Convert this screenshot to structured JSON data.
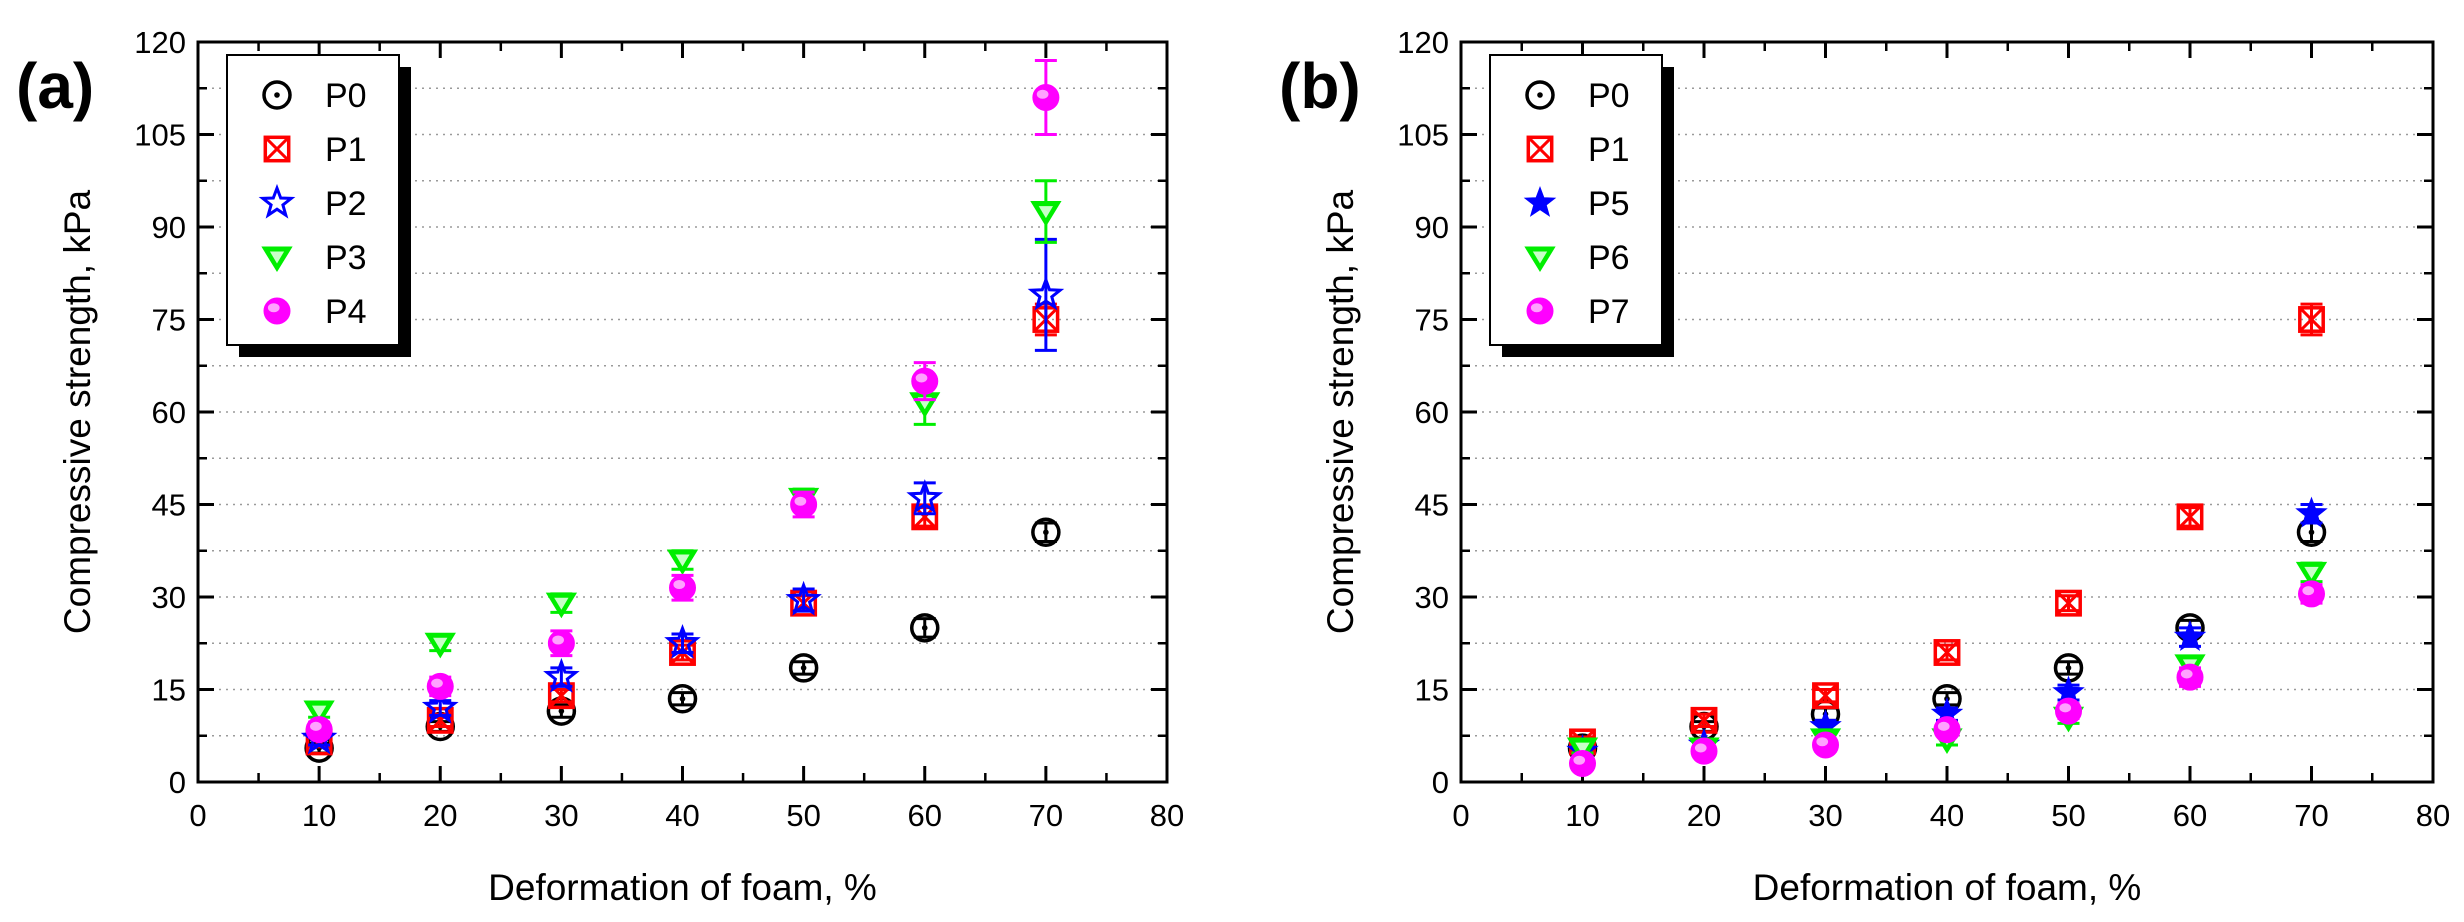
{
  "chart_data": [
    {
      "panel_label": "(a)",
      "type": "scatter",
      "xlabel": "Deformation of foam, %",
      "ylabel": "Compressive strength, kPa",
      "xlim": [
        0,
        80
      ],
      "ylim": [
        0,
        120
      ],
      "xticks": [
        "0",
        "10",
        "20",
        "30",
        "40",
        "50",
        "60",
        "70",
        "80"
      ],
      "yticks": [
        "0",
        "15",
        "30",
        "45",
        "60",
        "75",
        "90",
        "105",
        "120"
      ],
      "grid": "horizontal dotted",
      "legend_position": "top-left",
      "x": [
        10,
        20,
        30,
        40,
        50,
        60,
        70
      ],
      "series": [
        {
          "name": "P0",
          "marker": "circle-dot",
          "color": "#000000",
          "values": [
            5.5,
            9,
            11.5,
            13.5,
            18.5,
            25,
            40.5
          ],
          "errors": [
            0.8,
            0.8,
            1,
            1,
            1,
            1.5,
            1.5
          ]
        },
        {
          "name": "P1",
          "marker": "square-x",
          "color": "#ff0000",
          "values": [
            6.5,
            10,
            14,
            21,
            29,
            43,
            75
          ],
          "errors": [
            0.8,
            1,
            1,
            1.2,
            1.2,
            1.5,
            2.5
          ]
        },
        {
          "name": "P2",
          "marker": "star-open",
          "color": "#0000ff",
          "values": [
            7,
            12,
            17,
            22.5,
            29.5,
            46,
            79
          ],
          "errors": [
            1,
            1.2,
            1.5,
            1.5,
            1.8,
            2.5,
            9
          ]
        },
        {
          "name": "P3",
          "marker": "triangle-down",
          "color": "#00ee00",
          "values": [
            11.5,
            22.5,
            29,
            36,
            46,
            61.5,
            92.5
          ],
          "errors": [
            1,
            1.2,
            1.5,
            1.5,
            1.5,
            3.5,
            5
          ]
        },
        {
          "name": "P4",
          "marker": "circle-filled",
          "color": "#ff00ff",
          "values": [
            8.5,
            15.5,
            22.5,
            31.5,
            45,
            65,
            111
          ],
          "errors": [
            1.2,
            1.5,
            2,
            2,
            2,
            3,
            6
          ]
        }
      ]
    },
    {
      "panel_label": "(b)",
      "type": "scatter",
      "xlabel": "Deformation of foam, %",
      "ylabel": "Compressive strength, kPa",
      "xlim": [
        0,
        80
      ],
      "ylim": [
        0,
        120
      ],
      "xticks": [
        "0",
        "10",
        "20",
        "30",
        "40",
        "50",
        "60",
        "70",
        "80"
      ],
      "yticks": [
        "0",
        "15",
        "30",
        "45",
        "60",
        "75",
        "90",
        "105",
        "120"
      ],
      "grid": "horizontal dotted",
      "legend_position": "top-left",
      "x": [
        10,
        20,
        30,
        40,
        50,
        60,
        70
      ],
      "series": [
        {
          "name": "P0",
          "marker": "circle-dot",
          "color": "#000000",
          "values": [
            5.5,
            9,
            11,
            13.5,
            18.5,
            25,
            40.5
          ],
          "errors": [
            0.8,
            0.8,
            1,
            1,
            1,
            1.2,
            1.5
          ]
        },
        {
          "name": "P1",
          "marker": "square-x",
          "color": "#ff0000",
          "values": [
            6.5,
            10,
            14,
            21,
            29,
            43,
            75
          ],
          "errors": [
            0.8,
            1,
            1,
            1.2,
            1.2,
            1.5,
            2.5
          ]
        },
        {
          "name": "P5",
          "marker": "star-filled",
          "color": "#0000ff",
          "values": [
            5,
            6,
            9,
            11,
            14.5,
            23.5,
            43.5
          ],
          "errors": [
            0.8,
            0.8,
            1,
            1,
            1.2,
            1.5,
            1.5
          ]
        },
        {
          "name": "P6",
          "marker": "triangle-down",
          "color": "#00ee00",
          "values": [
            5.5,
            5.5,
            7,
            7,
            10.5,
            19,
            34
          ],
          "errors": [
            0.8,
            0.8,
            0.8,
            1,
            1,
            1.2,
            1.5
          ]
        },
        {
          "name": "P7",
          "marker": "circle-filled",
          "color": "#ff00ff",
          "values": [
            3,
            5,
            6,
            8.5,
            11.5,
            17,
            30.5
          ],
          "errors": [
            0.8,
            0.8,
            1,
            1,
            1.2,
            1.5,
            1.5
          ]
        }
      ]
    }
  ]
}
